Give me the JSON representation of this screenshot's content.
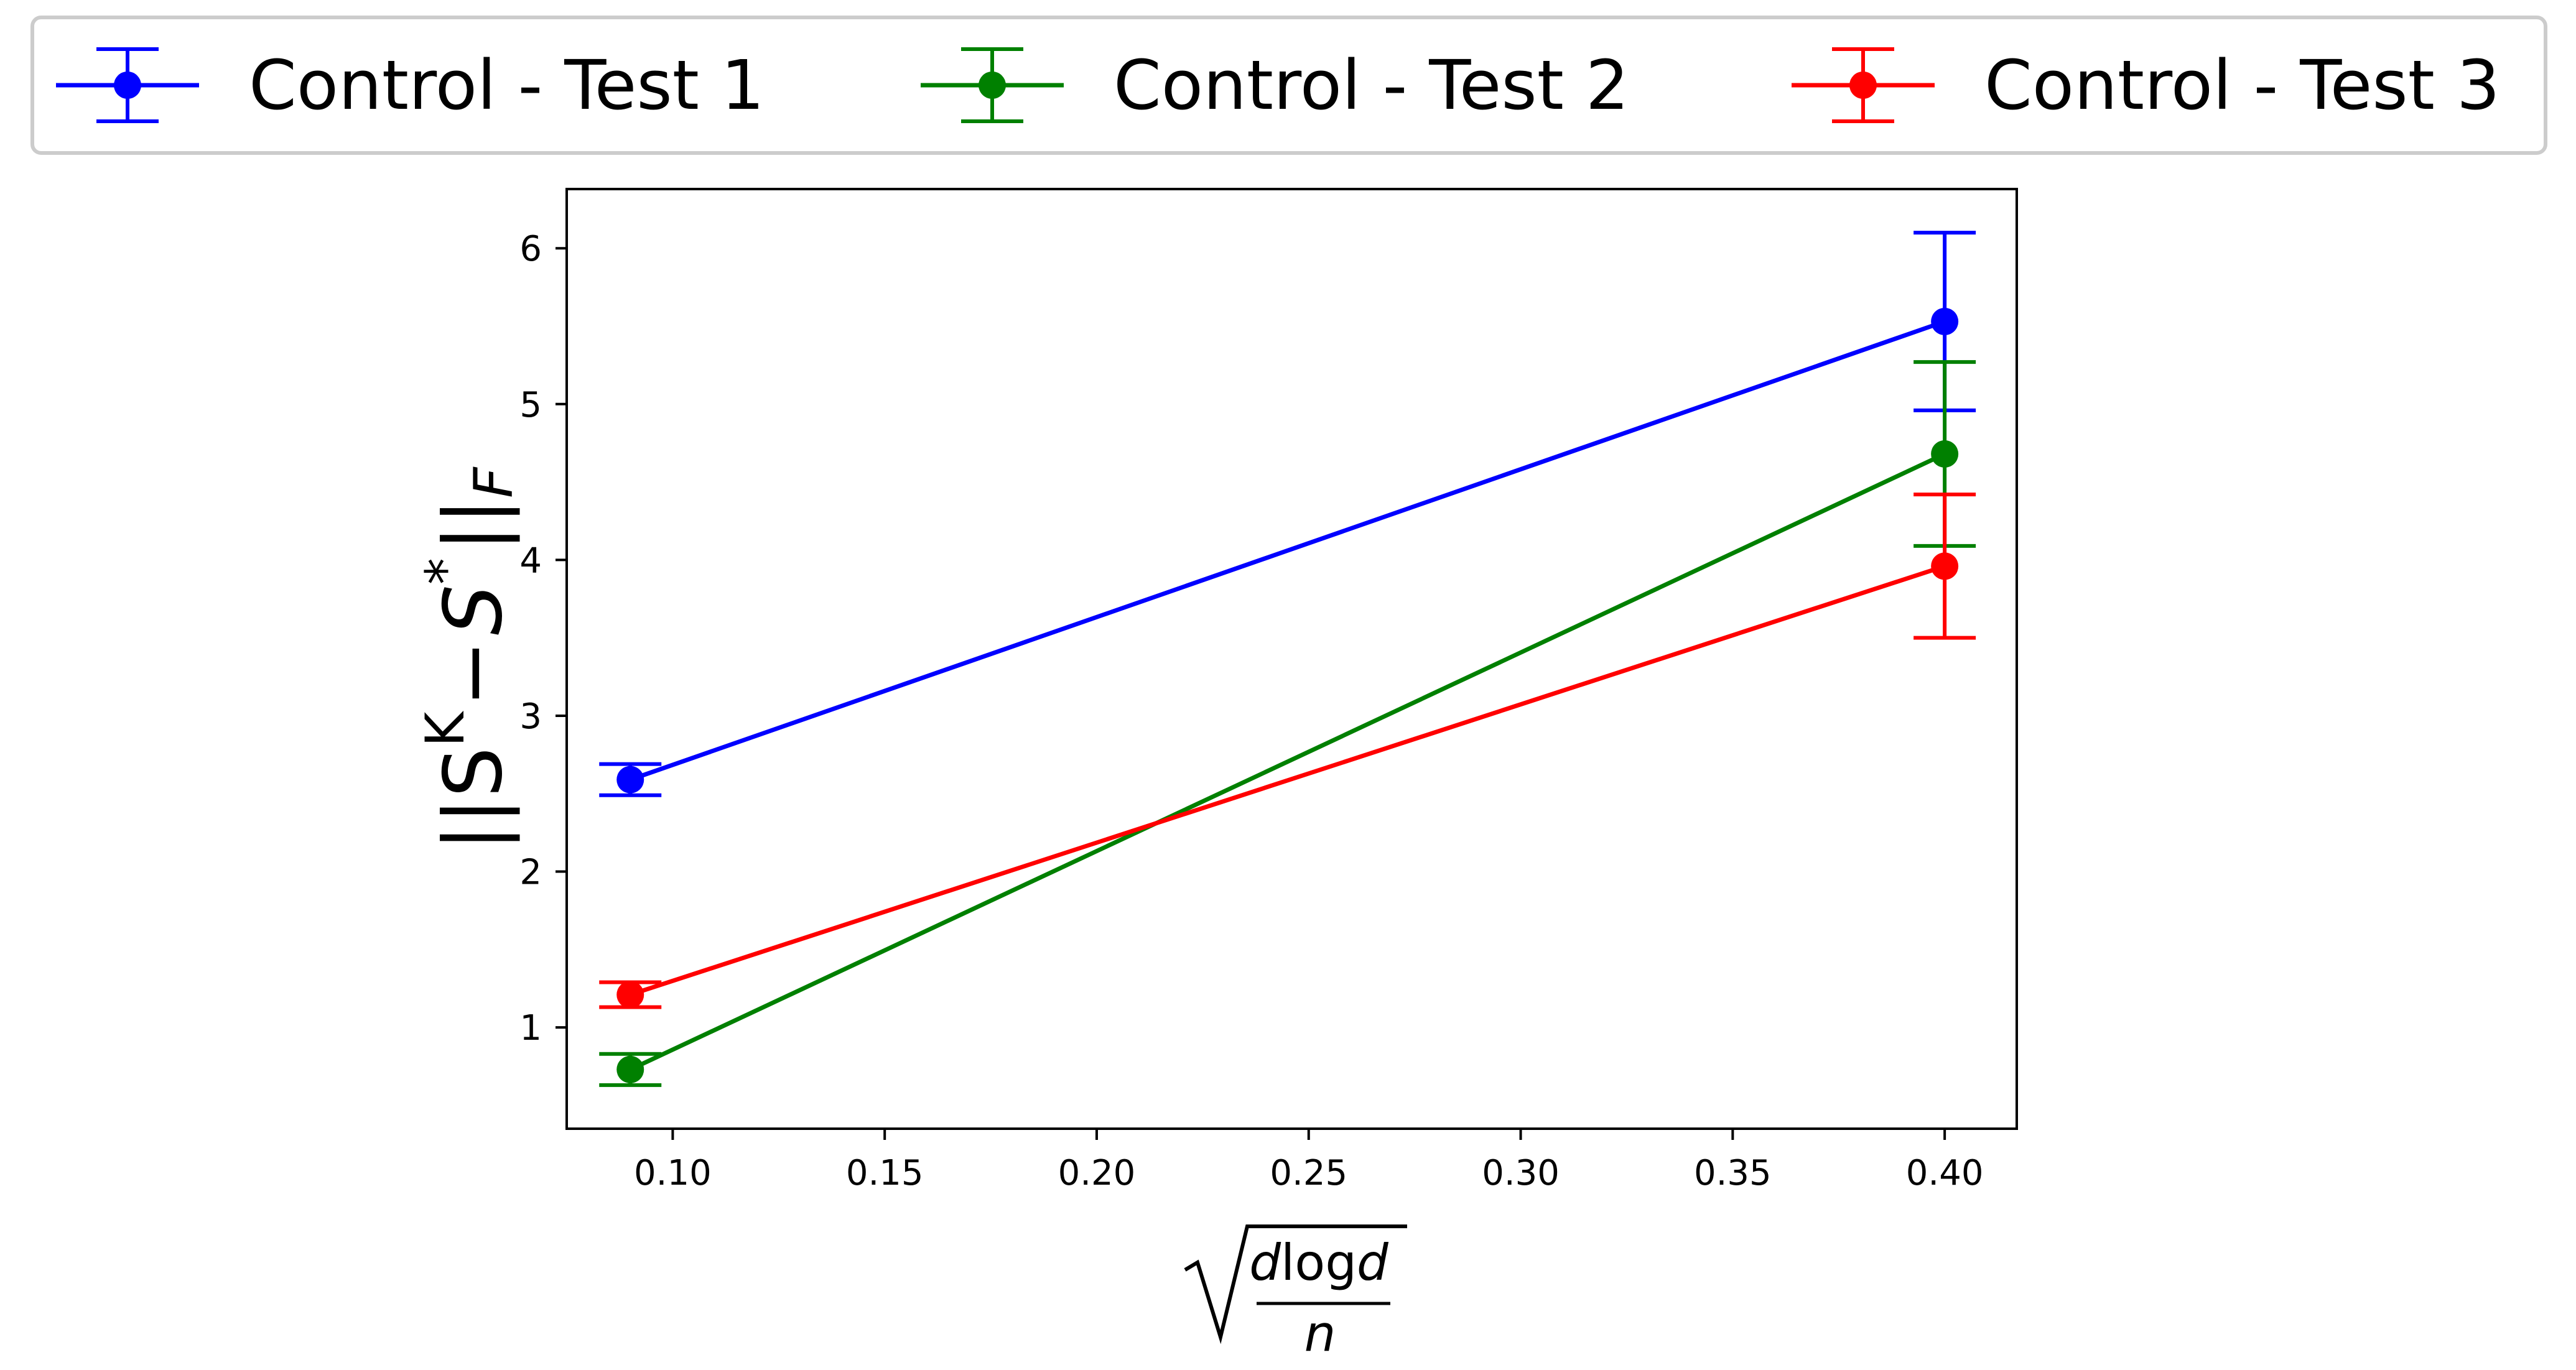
{
  "chart_data": {
    "type": "line",
    "title": "",
    "x": [
      0.09,
      0.4
    ],
    "xlim": [
      0.075,
      0.417
    ],
    "ylim": [
      0.35,
      6.38
    ],
    "xticks": [
      "0.10",
      "0.15",
      "0.20",
      "0.25",
      "0.30",
      "0.35",
      "0.40"
    ],
    "xtick_values": [
      0.1,
      0.15,
      0.2,
      0.25,
      0.3,
      0.35,
      0.4
    ],
    "yticks": [
      "1",
      "2",
      "3",
      "4",
      "5",
      "6"
    ],
    "ytick_values": [
      1,
      2,
      3,
      4,
      5,
      6
    ],
    "ylabel": {
      "open": "||S",
      "sup": "K",
      "minus": "−",
      "S": "S",
      "star": "*",
      "close": "||",
      "sub": "F"
    },
    "xlabel": {
      "num_d": "d",
      "num_log": "log",
      "num_d2": "d",
      "den": "n"
    },
    "grid": false,
    "legend_position": "top, above plot, single row",
    "series": [
      {
        "name": "Control - Test 1",
        "color": "#0000ff",
        "y": [
          2.59,
          5.53
        ],
        "err": [
          0.1,
          0.57
        ]
      },
      {
        "name": "Control - Test 2",
        "color": "#008000",
        "y": [
          0.73,
          4.68
        ],
        "err": [
          0.1,
          0.59
        ]
      },
      {
        "name": "Control - Test 3",
        "color": "#ff0000",
        "y": [
          1.21,
          3.96
        ],
        "err": [
          0.08,
          0.46
        ]
      }
    ]
  }
}
